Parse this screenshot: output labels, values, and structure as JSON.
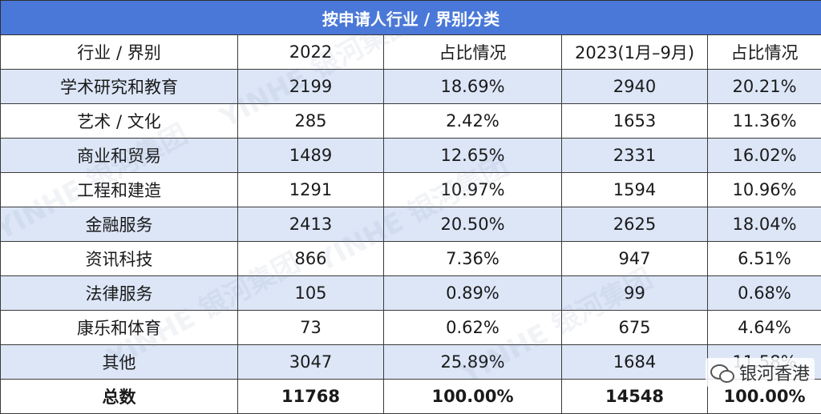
{
  "table": {
    "title": "按申请人行业 / 界别分类",
    "headers": [
      "行业 / 界别",
      "2022",
      "占比情况",
      "2023(1月–9月)",
      "占比情况"
    ],
    "rows": [
      [
        "学术研究和教育",
        "2199",
        "18.69%",
        "2940",
        "20.21%"
      ],
      [
        "艺术 / 文化",
        "285",
        "2.42%",
        "1653",
        "11.36%"
      ],
      [
        "商业和贸易",
        "1489",
        "12.65%",
        "2331",
        "16.02%"
      ],
      [
        "工程和建造",
        "1291",
        "10.97%",
        "1594",
        "10.96%"
      ],
      [
        "金融服务",
        "2413",
        "20.50%",
        "2625",
        "18.04%"
      ],
      [
        "资讯科技",
        "866",
        "7.36%",
        "947",
        "6.51%"
      ],
      [
        "法律服务",
        "105",
        "0.89%",
        "99",
        "0.68%"
      ],
      [
        "康乐和体育",
        "73",
        "0.62%",
        "675",
        "4.64%"
      ],
      [
        "其他",
        "3047",
        "25.89%",
        "1684",
        "11.58%"
      ]
    ],
    "total": [
      "总数",
      "11768",
      "100.00%",
      "14548",
      "100.00%"
    ]
  },
  "badge": {
    "icon": "wechat-icon",
    "text": "银河香港"
  },
  "colors": {
    "title_bg": "#4a78d8",
    "shade_bg": "#dce6f7"
  }
}
